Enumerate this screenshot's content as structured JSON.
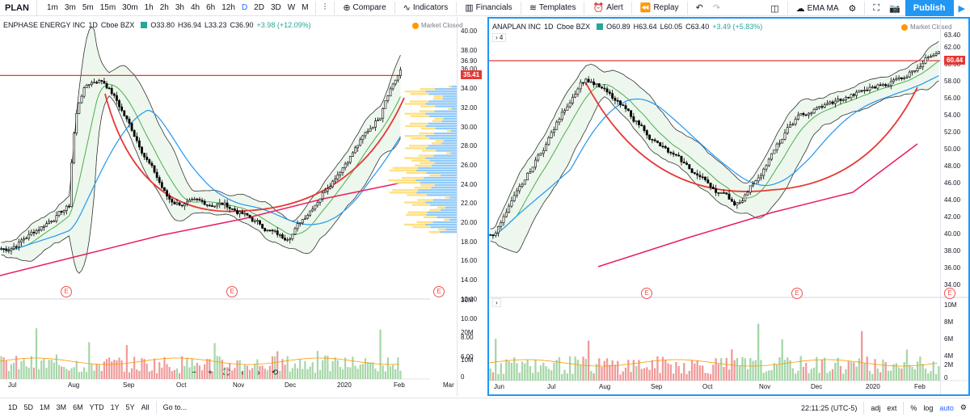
{
  "toolbar": {
    "symbol": "PLAN",
    "intervals": [
      "1m",
      "3m",
      "5m",
      "15m",
      "30m",
      "1h",
      "2h",
      "3h",
      "4h",
      "6h",
      "12h",
      "D",
      "2D",
      "3D",
      "W",
      "M"
    ],
    "active_interval": "D",
    "compare": "Compare",
    "indicators": "Indicators",
    "financials": "Financials",
    "templates": "Templates",
    "alert": "Alert",
    "replay": "Replay",
    "ema_label": "EMA MA",
    "publish": "Publish"
  },
  "left": {
    "name": "ENPHASE ENERGY INC",
    "interval": "1D",
    "exchange": "Cboe BZX",
    "open": "O33.80",
    "high": "H36.94",
    "low": "L33.23",
    "close": "C36.90",
    "change": "+3.98 (+12.09%)",
    "market_status": "Market Closed",
    "price_tag": "35.41",
    "price_labels": [
      "40.00",
      "38.00",
      "36.90",
      "36.00",
      "34.00",
      "32.00",
      "30.00",
      "28.00",
      "26.00",
      "24.00",
      "22.00",
      "20.00",
      "18.00",
      "16.00",
      "14.00",
      "12.00",
      "10.00",
      "8.00",
      "6.00"
    ],
    "volume_labels": [
      "30M",
      "20M",
      "10M",
      "0"
    ],
    "time_labels": [
      "Jul",
      "Aug",
      "Sep",
      "Oct",
      "Nov",
      "Dec",
      "2020",
      "Feb",
      "Mar"
    ],
    "event_label": "E"
  },
  "right": {
    "name": "ANAPLAN INC",
    "interval": "1D",
    "exchange": "Cboe BZX",
    "open": "O60.89",
    "high": "H63.64",
    "low": "L60.05",
    "close": "C63.40",
    "change": "+3.49 (+5.83%)",
    "market_status": "Market Closed",
    "collapse": "4",
    "price_tag": "60.44",
    "price_labels": [
      "63.40",
      "62.00",
      "60.00",
      "58.00",
      "56.00",
      "54.00",
      "52.00",
      "50.00",
      "48.00",
      "46.00",
      "44.00",
      "42.00",
      "40.00",
      "38.00",
      "36.00",
      "34.00"
    ],
    "volume_labels": [
      "10M",
      "8M",
      "6M",
      "4M",
      "2M",
      "0"
    ],
    "time_labels": [
      "Jun",
      "Jul",
      "Aug",
      "Sep",
      "Oct",
      "Nov",
      "Dec",
      "2020",
      "Feb"
    ],
    "event_label": "E"
  },
  "bottom": {
    "ranges": [
      "1D",
      "5D",
      "1M",
      "3M",
      "6M",
      "YTD",
      "1Y",
      "5Y",
      "All"
    ],
    "goto": "Go to...",
    "time": "22:11:25 (UTC-5)",
    "adj": "adj",
    "ext": "ext",
    "pct": "%",
    "log": "log",
    "auto": "auto"
  },
  "colors": {
    "up": "#26a69a",
    "down": "#ef5350",
    "band_fill": "#e8f5e9",
    "ma_blue": "#2196f3",
    "ma_red": "#e91e63",
    "hline": "#e53935",
    "accent": "#2962ff"
  }
}
